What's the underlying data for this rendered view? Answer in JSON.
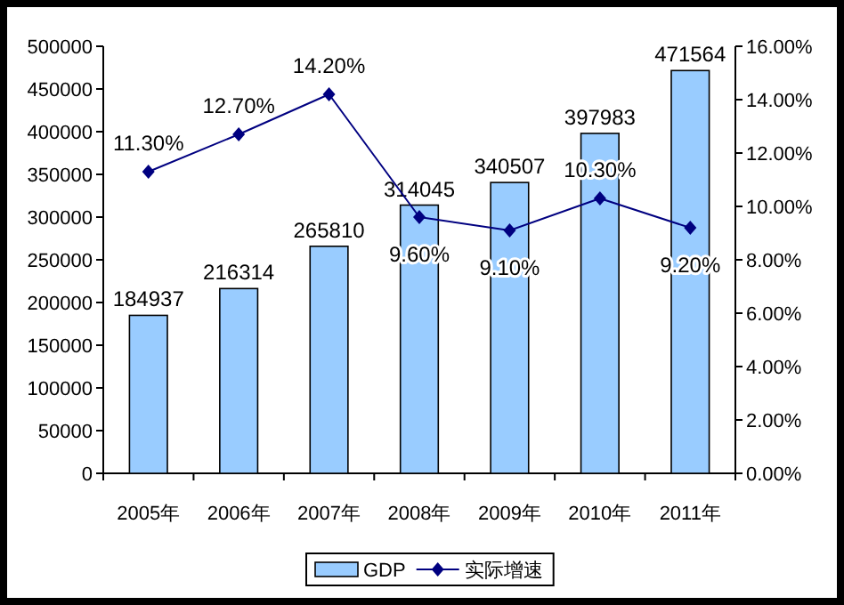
{
  "chart_data": {
    "type": "bar",
    "categories": [
      "2005年",
      "2006年",
      "2007年",
      "2008年",
      "2009年",
      "2010年",
      "2011年"
    ],
    "series": [
      {
        "name": "GDP",
        "color": "#99ccff",
        "values": [
          184937,
          216314,
          265810,
          314045,
          340507,
          397983,
          471564
        ],
        "value_labels": [
          "184937",
          "216314",
          "265810",
          "314045",
          "340507",
          "397983",
          "471564"
        ]
      },
      {
        "name": "实际增速",
        "type": "line",
        "axis": "y2",
        "color": "#000080",
        "marker": "diamond",
        "values": [
          11.3,
          12.7,
          14.2,
          9.6,
          9.1,
          10.3,
          9.2
        ],
        "value_labels": [
          "11.30%",
          "12.70%",
          "14.20%",
          "9.60%",
          "9.10%",
          "10.30%",
          "9.20%"
        ]
      }
    ],
    "ylim": [
      0,
      500000
    ],
    "yticks": [
      0,
      50000,
      100000,
      150000,
      200000,
      250000,
      300000,
      350000,
      400000,
      450000,
      500000
    ],
    "y2lim": [
      0,
      16
    ],
    "y2ticks": [
      {
        "value": 0,
        "label": "0.00%"
      },
      {
        "value": 2,
        "label": "2.00%"
      },
      {
        "value": 4,
        "label": "4.00%"
      },
      {
        "value": 6,
        "label": "6.00%"
      },
      {
        "value": 8,
        "label": "8.00%"
      },
      {
        "value": 10,
        "label": "10.00%"
      },
      {
        "value": 12,
        "label": "12.00%"
      },
      {
        "value": 14,
        "label": "14.00%"
      },
      {
        "value": 16,
        "label": "16.00%"
      }
    ],
    "legend": "bottom",
    "grid": false
  }
}
